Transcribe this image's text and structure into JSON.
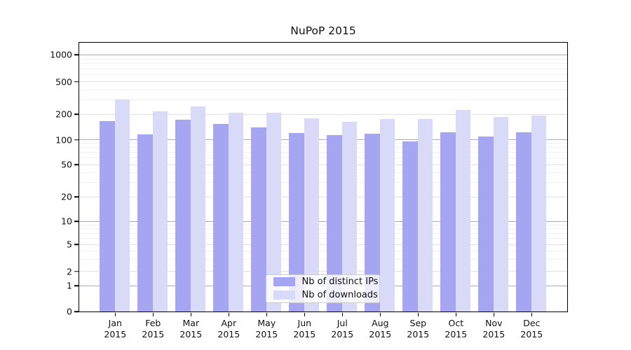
{
  "title": "NuPoP 2015",
  "chart_data": {
    "type": "bar",
    "title": "NuPoP 2015",
    "x_tick_months": [
      "Jan",
      "Feb",
      "Mar",
      "Apr",
      "May",
      "Jun",
      "Jul",
      "Aug",
      "Sep",
      "Oct",
      "Nov",
      "Dec"
    ],
    "x_tick_year": "2015",
    "series": [
      {
        "name": "Nb of distinct IPs",
        "color": "#a5a5f1",
        "values": [
          166,
          115,
          170,
          151,
          139,
          118,
          113,
          117,
          94,
          122,
          109,
          120
        ]
      },
      {
        "name": "Nb of downloads",
        "color": "#d9d9f8",
        "values": [
          300,
          216,
          248,
          209,
          209,
          176,
          160,
          175,
          173,
          225,
          183,
          191
        ]
      }
    ],
    "yticks": [
      0,
      1,
      2,
      5,
      10,
      20,
      50,
      100,
      200,
      500,
      1000
    ],
    "yscale": "log-like (0 then log 1..1000)",
    "ylim": [
      0,
      1000
    ],
    "grid": "horizontal",
    "legend": {
      "entries": [
        "Nb of distinct IPs",
        "Nb of downloads"
      ],
      "position": "bottom-center"
    },
    "colors": {
      "major_grid": "#ababab",
      "minor_grid": "#e0e0e0",
      "faint_grid": "#efefef",
      "axis": "#000000"
    }
  }
}
